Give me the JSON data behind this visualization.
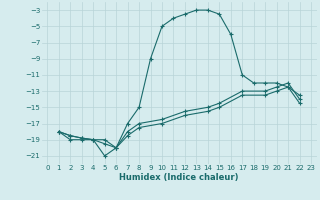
{
  "title": "",
  "xlabel": "Humidex (Indice chaleur)",
  "ylabel": "",
  "background_color": "#d6ecee",
  "grid_color": "#b8d4d8",
  "line_color": "#1a6b6b",
  "xlim": [
    -0.5,
    23.5
  ],
  "ylim": [
    -22,
    -2
  ],
  "xticks": [
    0,
    1,
    2,
    3,
    4,
    5,
    6,
    7,
    8,
    9,
    10,
    11,
    12,
    13,
    14,
    15,
    16,
    17,
    18,
    19,
    20,
    21,
    22,
    23
  ],
  "yticks": [
    -3,
    -5,
    -7,
    -9,
    -11,
    -13,
    -15,
    -17,
    -19,
    -21
  ],
  "line1_x": [
    1,
    2,
    3,
    4,
    5,
    6,
    7,
    8,
    9,
    10,
    11,
    12,
    13,
    14,
    15,
    16,
    17,
    18,
    19,
    20,
    21,
    22
  ],
  "line1_y": [
    -18,
    -19,
    -19,
    -19,
    -21,
    -20,
    -17,
    -15,
    -9,
    -5,
    -4,
    -3.5,
    -3,
    -3,
    -3.5,
    -6,
    -11,
    -12,
    -12,
    -12,
    -12.5,
    -13.5
  ],
  "line2_x": [
    1,
    2,
    3,
    4,
    5,
    6,
    7,
    8,
    10,
    12,
    14,
    15,
    17,
    19,
    20,
    21,
    22
  ],
  "line2_y": [
    -18,
    -18.5,
    -18.8,
    -19,
    -19,
    -20,
    -18,
    -17,
    -16.5,
    -15.5,
    -15,
    -14.5,
    -13,
    -13,
    -12.5,
    -12,
    -14
  ],
  "line3_x": [
    1,
    2,
    3,
    4,
    5,
    6,
    7,
    8,
    10,
    12,
    14,
    15,
    17,
    19,
    20,
    21,
    22
  ],
  "line3_y": [
    -18,
    -18.5,
    -18.8,
    -19,
    -19.5,
    -20,
    -18.5,
    -17.5,
    -17,
    -16,
    -15.5,
    -15,
    -13.5,
    -13.5,
    -13,
    -12.5,
    -14.5
  ]
}
